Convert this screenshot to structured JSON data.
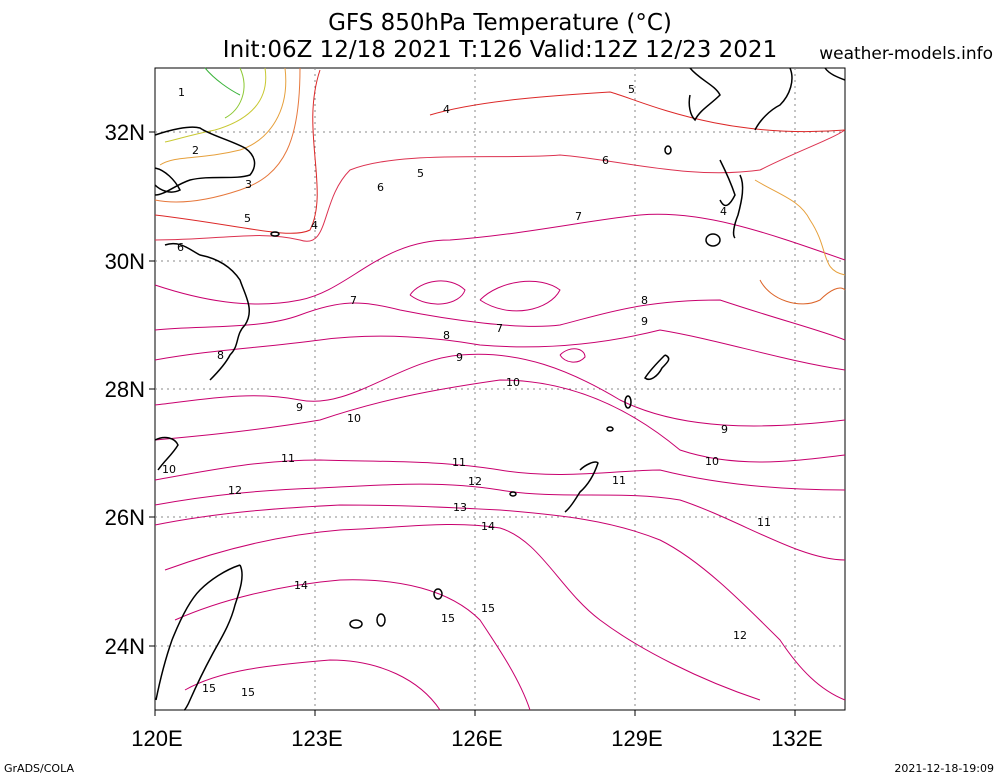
{
  "title": {
    "line1": "GFS 850hPa Temperature (°C)",
    "line2": "Init:06Z 12/18 2021 T:126 Valid:12Z 12/23 2021"
  },
  "site": "weather-models.info",
  "footer": {
    "left": "GrADS/COLA",
    "right": "2021-12-18-19:09"
  },
  "map": {
    "lon_range": [
      120,
      133
    ],
    "lat_range": [
      23,
      33
    ],
    "lat_labels": [
      "32N",
      "30N",
      "28N",
      "26N",
      "24N"
    ],
    "lon_labels": [
      "120E",
      "123E",
      "126E",
      "129E",
      "132E"
    ],
    "grid": "dotted",
    "contour_labels": [
      "1",
      "2",
      "3",
      "4",
      "5",
      "6",
      "7",
      "8",
      "9",
      "10",
      "11",
      "12",
      "13",
      "14",
      "15"
    ],
    "contour_colors": {
      "cold": "#3cb43c",
      "cool": "#e6a03c",
      "mid": "#dc2828",
      "warm": "#c8006e"
    }
  }
}
